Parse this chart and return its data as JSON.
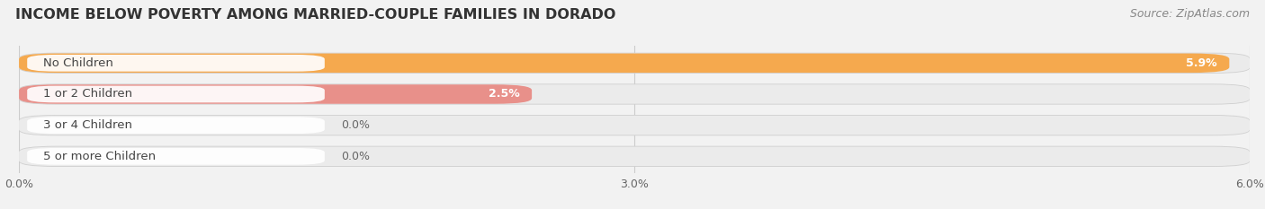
{
  "title": "INCOME BELOW POVERTY AMONG MARRIED-COUPLE FAMILIES IN DORADO",
  "source": "Source: ZipAtlas.com",
  "categories": [
    "No Children",
    "1 or 2 Children",
    "3 or 4 Children",
    "5 or more Children"
  ],
  "values": [
    5.9,
    2.5,
    0.0,
    0.0
  ],
  "bar_colors": [
    "#F5A94E",
    "#E8908A",
    "#AABDD8",
    "#C4AACC"
  ],
  "xlim": [
    0,
    6.0
  ],
  "xticks": [
    0.0,
    3.0,
    6.0
  ],
  "xticklabels": [
    "0.0%",
    "3.0%",
    "6.0%"
  ],
  "value_labels": [
    "5.9%",
    "2.5%",
    "0.0%",
    "0.0%"
  ],
  "bar_height": 0.62,
  "title_fontsize": 11.5,
  "source_fontsize": 9,
  "label_fontsize": 9.5,
  "value_fontsize": 9,
  "tick_fontsize": 9,
  "background_color": "#f2f2f2",
  "bar_bg_color": "#e0e0e0",
  "label_box_color": "#ffffff"
}
